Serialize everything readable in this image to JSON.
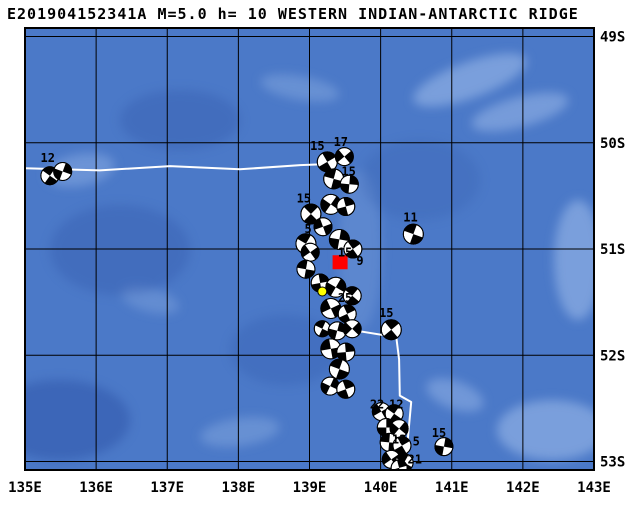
{
  "title": "E201904152341A M=5.0 h= 10 WESTERN INDIAN-ANTARCTIC RIDGE",
  "map": {
    "lon_range": [
      135,
      143
    ],
    "lat_range": [
      48.92,
      53.08
    ],
    "lon_ticks": [
      {
        "value": 135,
        "label": "135E"
      },
      {
        "value": 136,
        "label": "136E"
      },
      {
        "value": 137,
        "label": "137E"
      },
      {
        "value": 138,
        "label": "138E"
      },
      {
        "value": 139,
        "label": "139E"
      },
      {
        "value": 140,
        "label": "140E"
      },
      {
        "value": 141,
        "label": "141E"
      },
      {
        "value": 142,
        "label": "142E"
      },
      {
        "value": 143,
        "label": "143E"
      }
    ],
    "lat_ticks": [
      {
        "value": 49,
        "label": "49S"
      },
      {
        "value": 50,
        "label": "50S"
      },
      {
        "value": 51,
        "label": "51S"
      },
      {
        "value": 52,
        "label": "52S"
      },
      {
        "value": 53,
        "label": "53S"
      }
    ],
    "colors": {
      "ocean": "#4b79c8",
      "deep": "#2d54a7",
      "shallow": "#aac6f0",
      "ridge_line": "#ffffff",
      "grid": "#000000",
      "frame": "#000000",
      "event_marker": "#ff0000",
      "secondary_marker": "#ffff00",
      "beachball_fill": "#ffffff",
      "beachball_tension": "#000000",
      "label_color": "#000000"
    },
    "plate_boundaries": [
      [
        [
          135.0,
          50.24
        ],
        [
          136.05,
          50.26
        ],
        [
          137.04,
          50.22
        ],
        [
          138.02,
          50.25
        ],
        [
          138.87,
          50.21
        ],
        [
          139.28,
          50.2
        ]
      ],
      [
        [
          139.57,
          51.76
        ],
        [
          140.22,
          51.83
        ],
        [
          140.26,
          52.04
        ],
        [
          140.27,
          52.38
        ],
        [
          140.43,
          52.44
        ],
        [
          140.38,
          52.8
        ],
        [
          140.34,
          53.08
        ]
      ]
    ],
    "beachballs": [
      {
        "lon": 135.35,
        "lat": 50.31,
        "r": 9,
        "rot": 35
      },
      {
        "lon": 135.53,
        "lat": 50.27,
        "r": 9,
        "rot": 110
      },
      {
        "lon": 140.46,
        "lat": 50.86,
        "r": 10,
        "rot": 20
      },
      {
        "lon": 139.25,
        "lat": 50.18,
        "r": 10,
        "rot": 60
      },
      {
        "lon": 139.49,
        "lat": 50.13,
        "r": 9,
        "rot": 140
      },
      {
        "lon": 139.34,
        "lat": 50.34,
        "r": 10,
        "rot": 15
      },
      {
        "lon": 139.56,
        "lat": 50.39,
        "r": 9,
        "rot": 95
      },
      {
        "lon": 139.02,
        "lat": 50.67,
        "r": 10,
        "rot": 45
      },
      {
        "lon": 139.3,
        "lat": 50.58,
        "r": 10,
        "rot": 125
      },
      {
        "lon": 139.51,
        "lat": 50.6,
        "r": 9,
        "rot": 75
      },
      {
        "lon": 139.19,
        "lat": 50.79,
        "r": 9,
        "rot": 160
      },
      {
        "lon": 138.95,
        "lat": 50.95,
        "r": 10,
        "rot": 30
      },
      {
        "lon": 139.42,
        "lat": 50.91,
        "r": 10,
        "rot": 100
      },
      {
        "lon": 139.61,
        "lat": 51.0,
        "r": 9,
        "rot": 55
      },
      {
        "lon": 139.01,
        "lat": 51.03,
        "r": 9,
        "rot": 145
      },
      {
        "lon": 138.95,
        "lat": 51.19,
        "r": 9,
        "rot": 10
      },
      {
        "lon": 139.15,
        "lat": 51.32,
        "r": 9,
        "rot": 80
      },
      {
        "lon": 139.37,
        "lat": 51.36,
        "r": 10,
        "rot": 120
      },
      {
        "lon": 139.6,
        "lat": 51.44,
        "r": 9,
        "rot": 40
      },
      {
        "lon": 139.3,
        "lat": 51.56,
        "r": 10,
        "rot": 155
      },
      {
        "lon": 139.53,
        "lat": 51.61,
        "r": 9,
        "rot": 65
      },
      {
        "lon": 139.18,
        "lat": 51.75,
        "r": 8,
        "rot": 25
      },
      {
        "lon": 139.39,
        "lat": 51.77,
        "r": 9,
        "rot": 105
      },
      {
        "lon": 139.6,
        "lat": 51.75,
        "r": 9,
        "rot": 135
      },
      {
        "lon": 140.15,
        "lat": 51.76,
        "r": 10,
        "rot": 50
      },
      {
        "lon": 139.3,
        "lat": 51.94,
        "r": 10,
        "rot": 170
      },
      {
        "lon": 139.51,
        "lat": 51.97,
        "r": 9,
        "rot": 85
      },
      {
        "lon": 139.42,
        "lat": 52.13,
        "r": 10,
        "rot": 20
      },
      {
        "lon": 139.29,
        "lat": 52.29,
        "r": 9,
        "rot": 115
      },
      {
        "lon": 139.51,
        "lat": 52.32,
        "r": 9,
        "rot": 70
      },
      {
        "lon": 140.01,
        "lat": 52.53,
        "r": 9,
        "rot": 150
      },
      {
        "lon": 140.19,
        "lat": 52.55,
        "r": 9,
        "rot": 35
      },
      {
        "lon": 140.08,
        "lat": 52.68,
        "r": 9,
        "rot": 90
      },
      {
        "lon": 140.26,
        "lat": 52.69,
        "r": 9,
        "rot": 130
      },
      {
        "lon": 140.12,
        "lat": 52.82,
        "r": 9,
        "rot": 5
      },
      {
        "lon": 140.3,
        "lat": 52.85,
        "r": 9,
        "rot": 60
      },
      {
        "lon": 140.89,
        "lat": 52.86,
        "r": 9,
        "rot": 100
      },
      {
        "lon": 140.15,
        "lat": 52.98,
        "r": 9,
        "rot": 145
      },
      {
        "lon": 140.33,
        "lat": 53.01,
        "r": 9,
        "rot": 30
      },
      {
        "lon": 140.26,
        "lat": 53.06,
        "r": 8,
        "rot": 75
      }
    ],
    "value_labels": [
      {
        "text": "12",
        "lon": 135.32,
        "lat": 50.18
      },
      {
        "text": "15",
        "lon": 139.11,
        "lat": 50.07
      },
      {
        "text": "17",
        "lon": 139.44,
        "lat": 50.03
      },
      {
        "text": "15",
        "lon": 139.55,
        "lat": 50.31
      },
      {
        "text": "15",
        "lon": 138.92,
        "lat": 50.56
      },
      {
        "text": "11",
        "lon": 140.42,
        "lat": 50.74
      },
      {
        "text": "5",
        "lon": 138.98,
        "lat": 50.85
      },
      {
        "text": "15",
        "lon": 139.5,
        "lat": 51.07
      },
      {
        "text": "9",
        "lon": 139.71,
        "lat": 51.15
      },
      {
        "text": "25",
        "lon": 139.5,
        "lat": 51.5
      },
      {
        "text": "15",
        "lon": 140.08,
        "lat": 51.64
      },
      {
        "text": "22",
        "lon": 139.95,
        "lat": 52.5
      },
      {
        "text": "12",
        "lon": 140.22,
        "lat": 52.5
      },
      {
        "text": "13",
        "lon": 140.26,
        "lat": 52.83
      },
      {
        "text": "5",
        "lon": 140.5,
        "lat": 52.85
      },
      {
        "text": "15",
        "lon": 140.82,
        "lat": 52.77
      },
      {
        "text": "21",
        "lon": 140.48,
        "lat": 53.02
      }
    ],
    "markers": [
      {
        "type": "current-event-square",
        "lon": 139.43,
        "lat": 51.12,
        "size": 15,
        "color_key": "event_marker"
      },
      {
        "type": "secondary-epicenter-dot",
        "lon": 139.18,
        "lat": 51.4,
        "radius": 4.5,
        "color_key": "secondary_marker"
      }
    ]
  }
}
